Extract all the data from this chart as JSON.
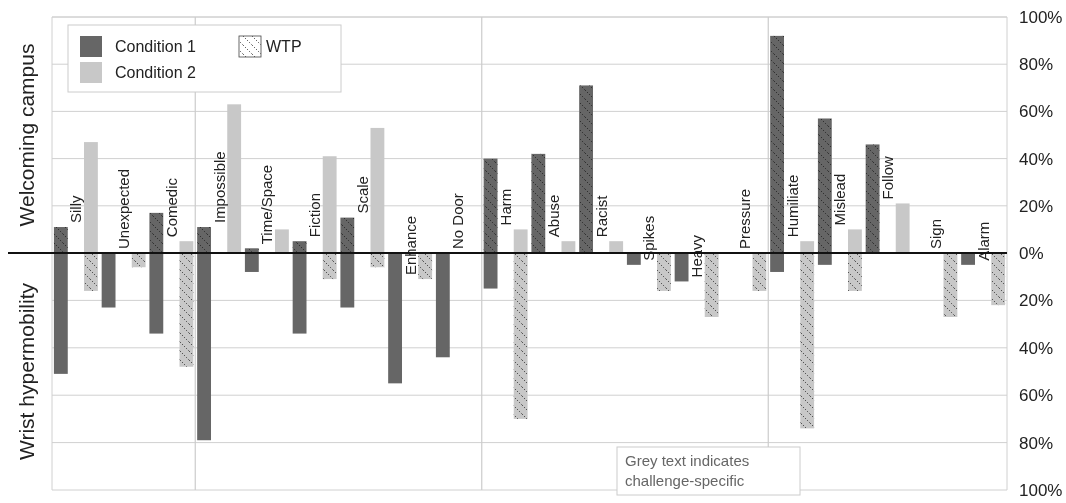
{
  "chart_data": [
    {
      "type": "bar",
      "ylabel": "Welcoming campus",
      "legend": "top left",
      "legend_title": "WTP",
      "grid": "y",
      "categories": [
        "Silly",
        "Unexpected",
        "Comedic",
        "Impossible",
        "Time/Space",
        "Fiction",
        "Scale",
        null,
        null,
        "Harm",
        "Abuse",
        "Racist",
        null,
        null,
        null,
        "Humiliate",
        "Mislead",
        "Follow",
        null,
        null
      ],
      "series": [
        {
          "name": "Condition 1",
          "color": "#666666",
          "line_style": "dotted",
          "values": [
            11,
            null,
            17,
            11,
            2,
            5,
            15,
            null,
            null,
            40,
            42,
            71,
            null,
            null,
            null,
            92,
            57,
            46,
            null,
            null
          ]
        },
        {
          "name": "Condition 2",
          "color": "#c8c8c8",
          "values": [
            47,
            null,
            5,
            63,
            10,
            41,
            53,
            null,
            null,
            10,
            5,
            5,
            null,
            null,
            null,
            5,
            10,
            21,
            null,
            null
          ]
        }
      ],
      "ylim": [
        0,
        100
      ],
      "yticks": [
        {
          "value": 0,
          "label": "0%"
        },
        {
          "value": 20,
          "label": "20%"
        },
        {
          "value": 40,
          "label": "40%"
        },
        {
          "value": 60,
          "label": "60%"
        },
        {
          "value": 80,
          "label": "80%"
        },
        {
          "value": 100,
          "label": "100%"
        }
      ]
    },
    {
      "type": "bar",
      "ylabel": "Wrist hypermobility",
      "grid": "y",
      "categories": [
        null,
        null,
        null,
        null,
        null,
        null,
        null,
        "Enhance",
        "No Door",
        null,
        null,
        null,
        "Spikes",
        "Heavy",
        "Pressure",
        null,
        null,
        null,
        "Sign",
        "Alarm"
      ],
      "series": [
        {
          "name": "Condition 1",
          "color": "#666666",
          "values": [
            51,
            23,
            34,
            79,
            8,
            34,
            23,
            55,
            44,
            15,
            null,
            null,
            5,
            12,
            null,
            8,
            5,
            null,
            null,
            5
          ]
        },
        {
          "name": "Condition 2",
          "color": "#c8c8c8",
          "line_style": "dotted",
          "values": [
            16,
            6,
            48,
            null,
            null,
            11,
            6,
            11,
            null,
            70,
            null,
            null,
            16,
            27,
            16,
            74,
            16,
            null,
            27,
            22
          ]
        }
      ],
      "ylim": [
        100,
        0
      ],
      "yticks": [
        {
          "value": 20,
          "label": "20%"
        },
        {
          "value": 40,
          "label": "40%"
        },
        {
          "value": 60,
          "label": "60%"
        },
        {
          "value": 80,
          "label": "80%"
        },
        {
          "value": 100,
          "label": "100%"
        }
      ],
      "annotations": [
        "Grey text indicates challenge-specific"
      ]
    }
  ]
}
